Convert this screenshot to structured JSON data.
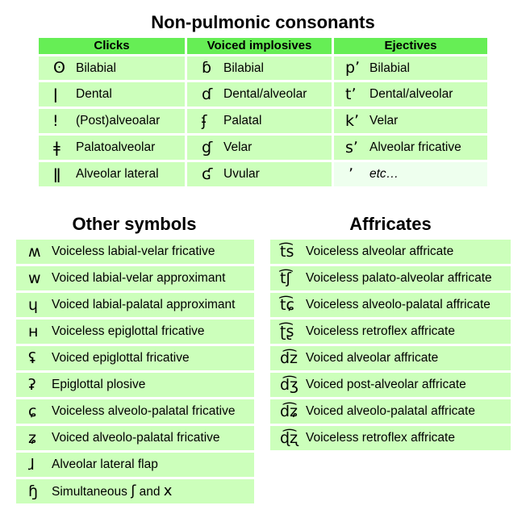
{
  "nonpulmonic": {
    "title": "Non-pulmonic consonants",
    "headers": [
      "Clicks",
      "Voiced implosives",
      "Ejectives"
    ],
    "clicks": [
      {
        "symbol": "ʘ",
        "label": "Bilabial"
      },
      {
        "symbol": "ǀ",
        "label": "Dental"
      },
      {
        "symbol": "ǃ",
        "label": "(Post)alveoalar"
      },
      {
        "symbol": "ǂ",
        "label": "Palatoalveolar"
      },
      {
        "symbol": "ǁ",
        "label": "Alveolar lateral"
      }
    ],
    "implosives": [
      {
        "symbol": "ɓ",
        "label": "Bilabial"
      },
      {
        "symbol": "ɗ",
        "label": "Dental/alveolar"
      },
      {
        "symbol": "ʄ",
        "label": "Palatal"
      },
      {
        "symbol": "ɠ",
        "label": "Velar"
      },
      {
        "symbol": "ʛ",
        "label": "Uvular"
      }
    ],
    "ejectives": [
      {
        "symbol": "pʼ",
        "label": "Bilabial"
      },
      {
        "symbol": "tʼ",
        "label": "Dental/alveolar"
      },
      {
        "symbol": "kʼ",
        "label": "Velar"
      },
      {
        "symbol": "sʼ",
        "label": "Alveolar fricative"
      },
      {
        "symbol": "ʼ",
        "label": "etc…"
      }
    ]
  },
  "other": {
    "title": "Other symbols",
    "items": [
      {
        "symbol": "ʍ",
        "label": "Voiceless labial-velar fricative"
      },
      {
        "symbol": "w",
        "label": "Voiced labial-velar approximant"
      },
      {
        "symbol": "ɥ",
        "label": "Voiced labial-palatal approximant"
      },
      {
        "symbol": "ʜ",
        "label": "Voiceless epiglottal fricative"
      },
      {
        "symbol": "ʢ",
        "label": "Voiced epiglottal fricative"
      },
      {
        "symbol": "ʡ",
        "label": "Epiglottal plosive"
      },
      {
        "symbol": "ɕ",
        "label": "Voiceless alveolo-palatal fricative"
      },
      {
        "symbol": "ʑ",
        "label": "Voiced alveolo-palatal fricative"
      },
      {
        "symbol": "ɺ",
        "label": "Alveolar lateral flap"
      },
      {
        "symbol": "ɧ",
        "label": "Simultaneous",
        "extra_symbol_1": "ʃ",
        "extra_text": "and",
        "extra_symbol_2": "x"
      }
    ]
  },
  "affricates": {
    "title": "Affricates",
    "items": [
      {
        "symbol": "t͡s",
        "label": "Voiceless alveolar affricate"
      },
      {
        "symbol": "t͡ʃ",
        "label": "Voiceless palato-alveolar affricate"
      },
      {
        "symbol": "t͡ɕ",
        "label": "Voiceless alveolo-palatal affricate"
      },
      {
        "symbol": "ʈ͡ʂ",
        "label": "Voiceless retroflex affricate"
      },
      {
        "symbol": "d͡z",
        "label": "Voiced alveolar affricate"
      },
      {
        "symbol": "d͡ʒ",
        "label": "Voiced post-alveolar affricate"
      },
      {
        "symbol": "d͡ʑ",
        "label": "Voiced alveolo-palatal affricate"
      },
      {
        "symbol": "ɖ͡ʐ",
        "label": "Voiceless retroflex affricate"
      }
    ]
  }
}
